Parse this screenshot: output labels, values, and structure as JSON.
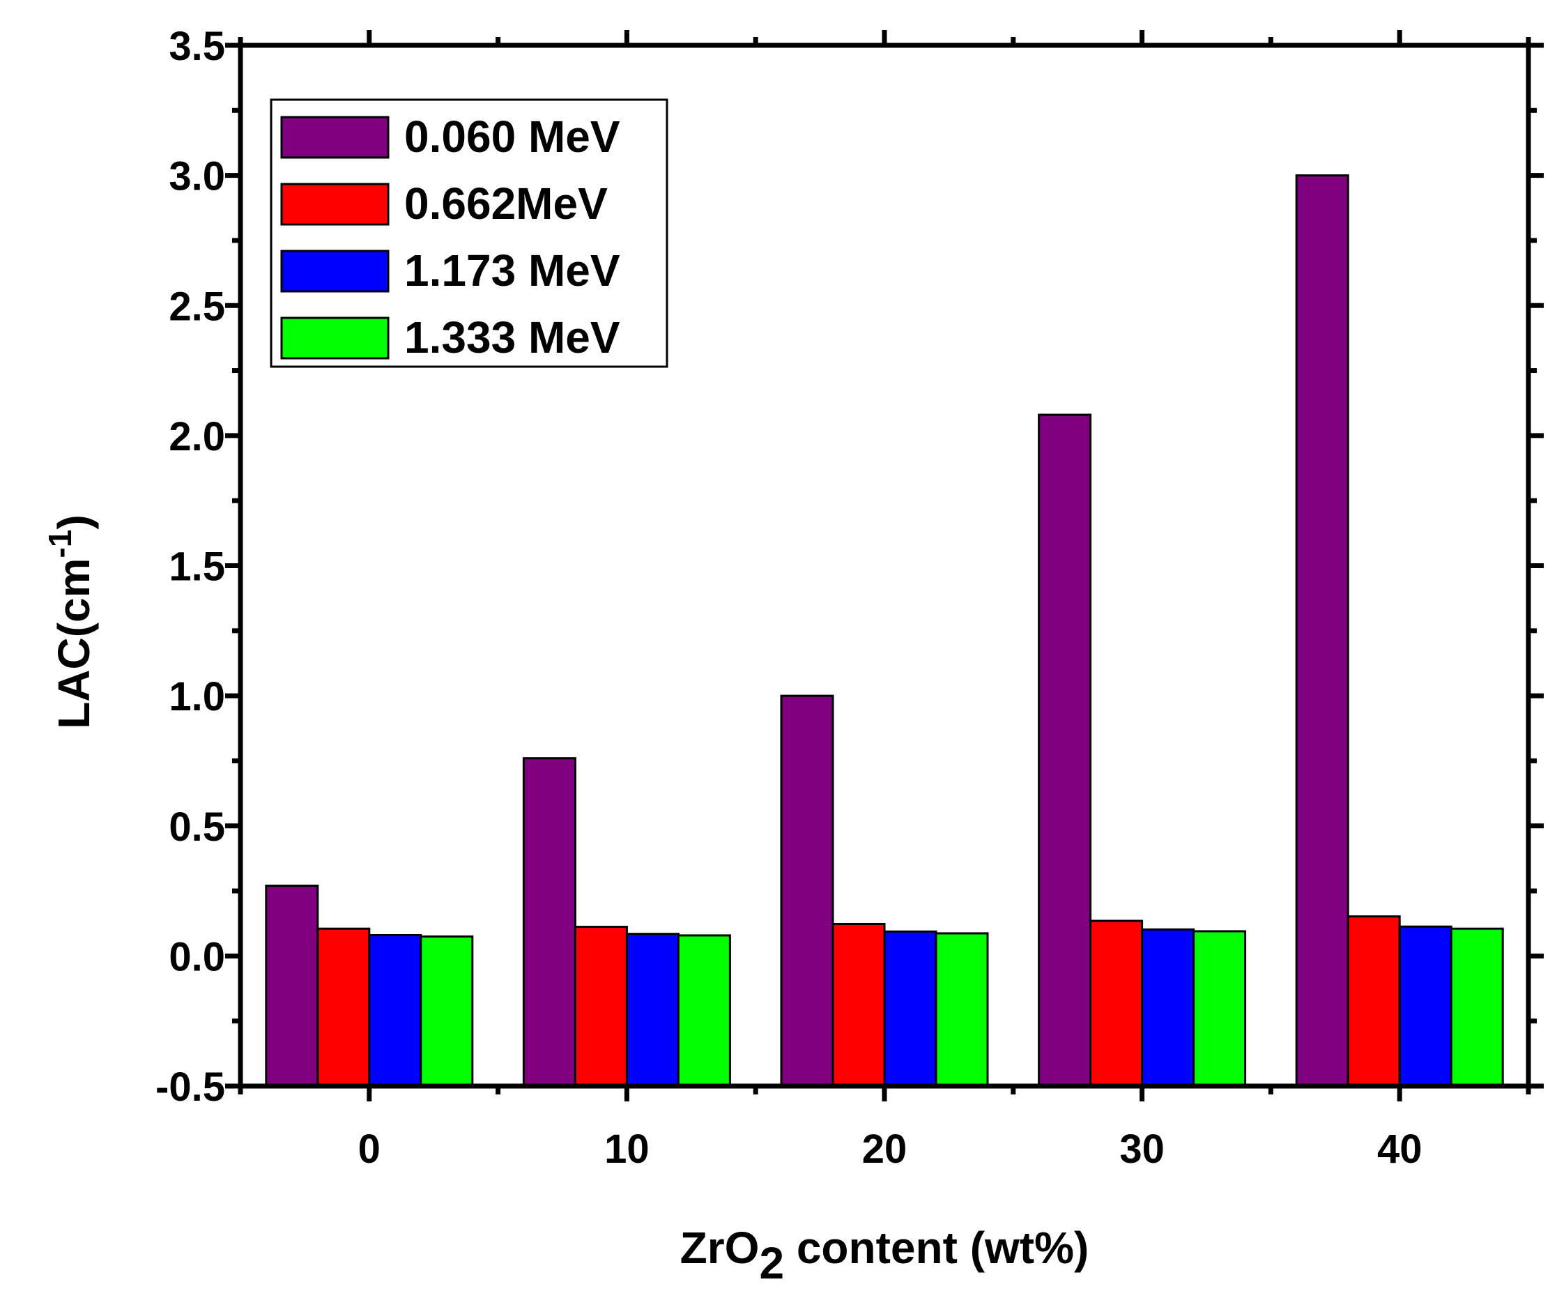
{
  "chart_data": {
    "type": "bar",
    "xlabel": {
      "prefix": "ZrO",
      "subscript": "2",
      "suffix": " content (wt%)"
    },
    "ylabel": {
      "prefix": "LAC(cm",
      "superscript": "-1",
      "suffix": ")"
    },
    "categories": [
      "0",
      "10",
      "20",
      "30",
      "40"
    ],
    "ylim": [
      -0.5,
      3.5
    ],
    "yticks": [
      "-0.5",
      "0.0",
      "0.5",
      "1.0",
      "1.5",
      "2.0",
      "2.5",
      "3.0",
      "3.5"
    ],
    "baseline": -0.5,
    "legend_position": "top-left",
    "series": [
      {
        "name": "0.060 MeV",
        "color": "#800080",
        "values": [
          0.27,
          0.76,
          1.0,
          2.08,
          3.0
        ]
      },
      {
        "name": "0.662MeV",
        "color": "#ff0000",
        "values": [
          0.105,
          0.112,
          0.123,
          0.135,
          0.152
        ]
      },
      {
        "name": "1.173 MeV",
        "color": "#0000ff",
        "values": [
          0.08,
          0.085,
          0.094,
          0.102,
          0.113
        ]
      },
      {
        "name": "1.333 MeV",
        "color": "#00ff00",
        "values": [
          0.075,
          0.079,
          0.087,
          0.095,
          0.105
        ]
      }
    ]
  }
}
